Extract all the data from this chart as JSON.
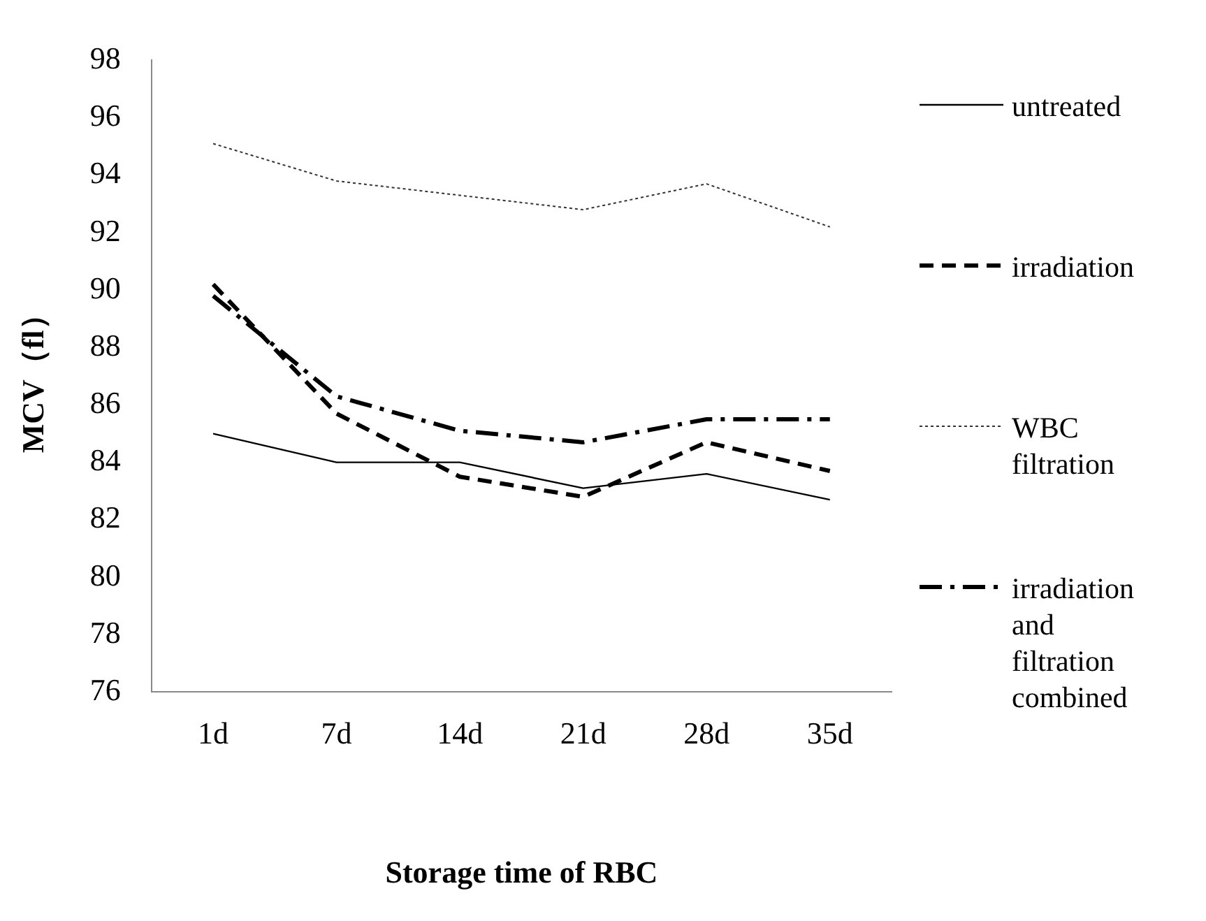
{
  "chart_data": {
    "type": "line",
    "xlabel": "Storage time of RBC",
    "ylabel": "MCV（fl）",
    "categories": [
      "1d",
      "7d",
      "14d",
      "21d",
      "28d",
      "35d"
    ],
    "series": [
      {
        "name": "untreated",
        "color": "#000000",
        "line_style": "solid",
        "values": [
          85.0,
          84.0,
          84.0,
          83.1,
          83.6,
          82.7
        ]
      },
      {
        "name": "irradiation",
        "color": "#000000",
        "line_style": "dashed",
        "values": [
          90.2,
          85.7,
          83.5,
          82.8,
          84.7,
          83.7
        ]
      },
      {
        "name": "WBC filtration",
        "color": "#333333",
        "line_style": "dotted",
        "values": [
          95.1,
          93.8,
          93.3,
          92.8,
          93.7,
          92.2
        ]
      },
      {
        "name": "irradiation and filtration combined",
        "color": "#000000",
        "line_style": "dashdot",
        "values": [
          89.8,
          86.3,
          85.1,
          84.7,
          85.5,
          85.5
        ]
      }
    ],
    "ylim": [
      76,
      98
    ],
    "yticks": [
      76,
      78,
      80,
      82,
      84,
      86,
      88,
      90,
      92,
      94,
      96,
      98
    ],
    "grid": false,
    "legend": "right",
    "marker": "none"
  }
}
